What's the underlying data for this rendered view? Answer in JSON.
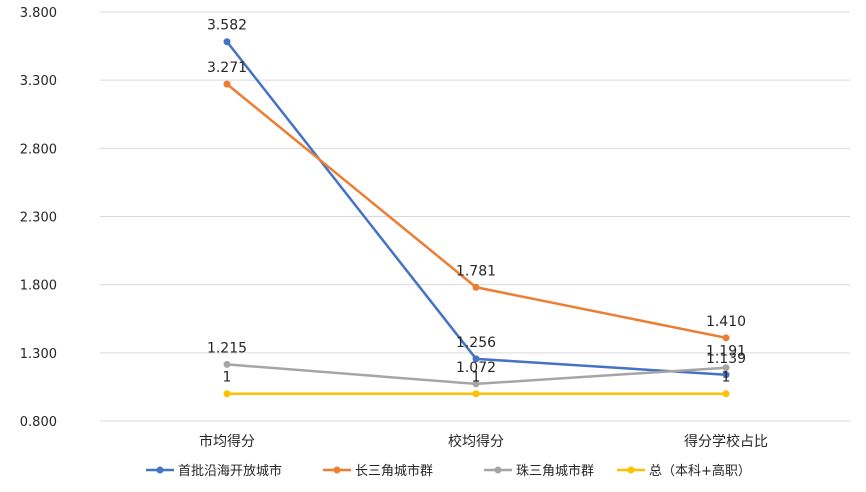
{
  "chart_data": {
    "type": "line",
    "title": "",
    "xlabel": "",
    "ylabel": "",
    "categories": [
      "市均得分",
      "校均得分",
      "得分学校占比"
    ],
    "y_ticks": [
      "0.800",
      "1.300",
      "1.800",
      "2.300",
      "2.800",
      "3.300",
      "3.800"
    ],
    "ylim": [
      0.8,
      3.8
    ],
    "grid": true,
    "legend_position": "bottom",
    "series": [
      {
        "name": "首批沿海开放城市",
        "color": "#4472C4",
        "values": [
          3.582,
          1.256,
          1.139
        ],
        "labels": [
          "3.582",
          "1.256",
          "1.139"
        ]
      },
      {
        "name": "长三角城市群",
        "color": "#ED7D31",
        "values": [
          3.271,
          1.781,
          1.41
        ],
        "labels": [
          "3.271",
          "1.781",
          "1.410"
        ]
      },
      {
        "name": "珠三角城市群",
        "color": "#A5A5A5",
        "values": [
          1.215,
          1.072,
          1.191
        ],
        "labels": [
          "1.215",
          "1.072",
          "1.191"
        ]
      },
      {
        "name": "总（本科+高职）",
        "color": "#FFC000",
        "values": [
          1,
          1,
          1
        ],
        "labels": [
          "1",
          "1",
          "1"
        ]
      }
    ]
  }
}
